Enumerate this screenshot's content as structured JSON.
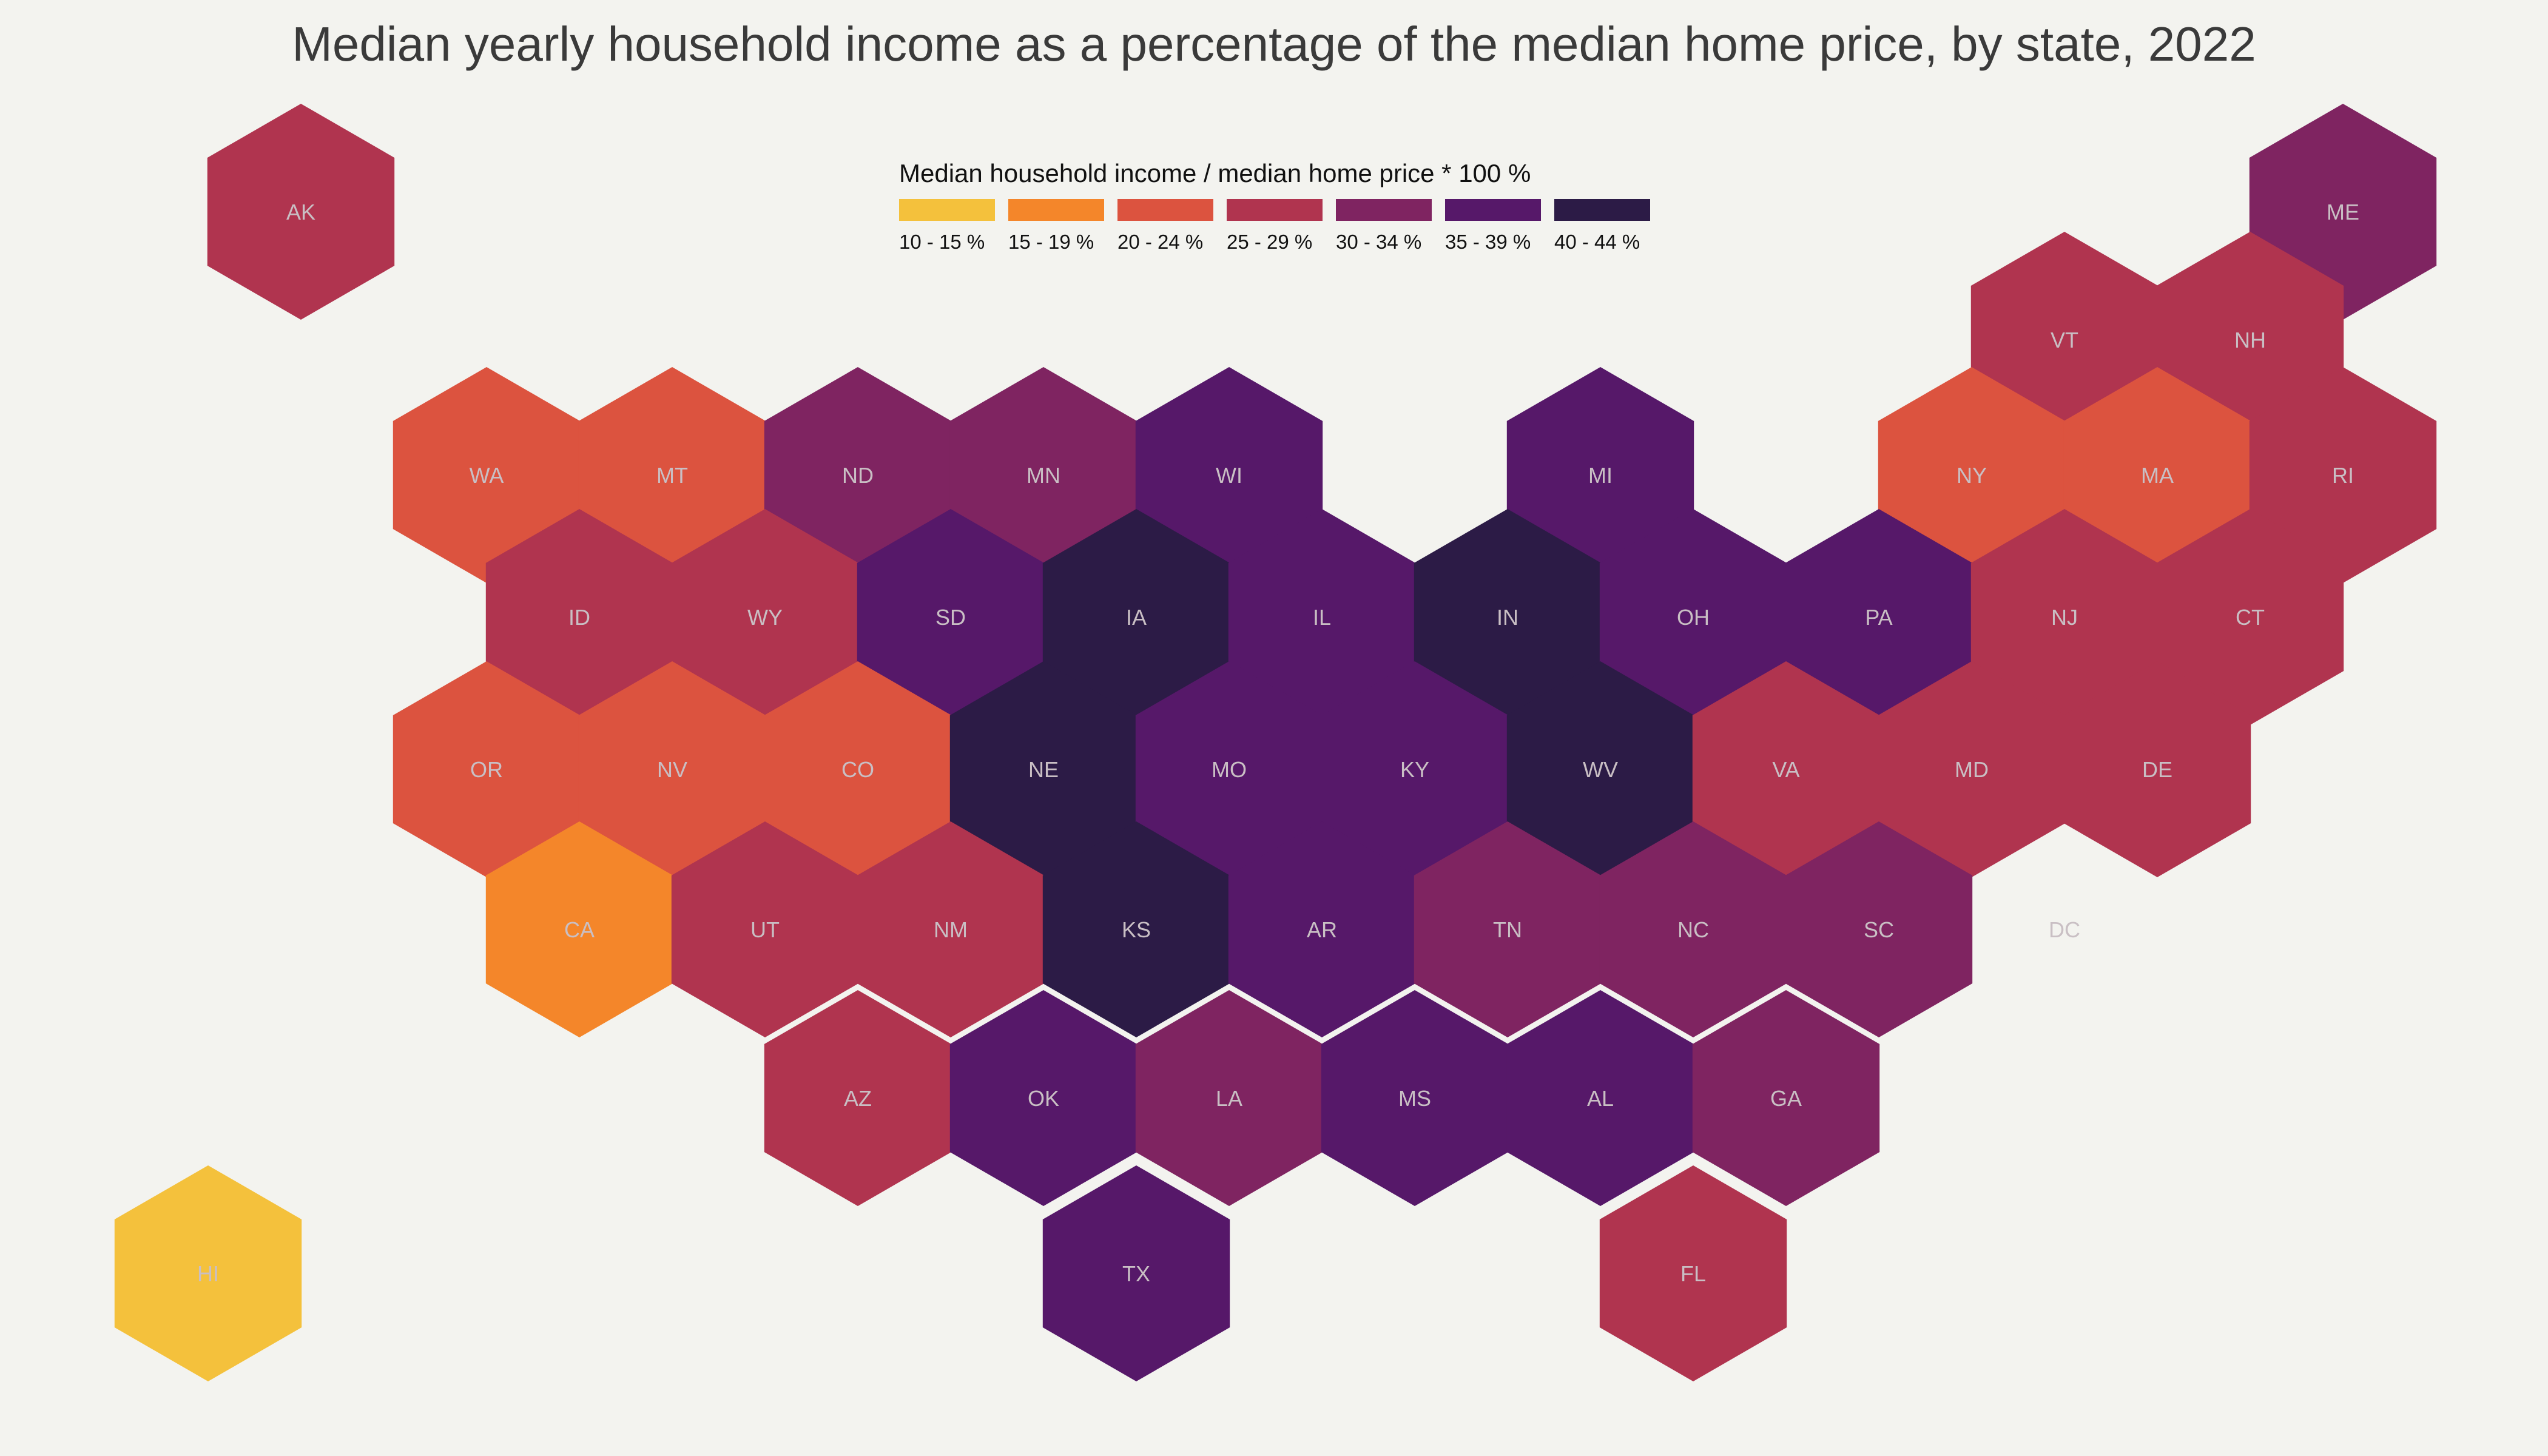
{
  "title": "Median yearly household income as a percentage of the median home price, by state, 2022",
  "legend": {
    "title": "Median household income / median home price * 100 %",
    "position": "top-center",
    "bins": [
      {
        "label": "10 - 15 %",
        "color": "#f4c13c"
      },
      {
        "label": "15 - 19 %",
        "color": "#f4862a"
      },
      {
        "label": "20 - 24 %",
        "color": "#dc533f"
      },
      {
        "label": "25 - 29 %",
        "color": "#b0344f"
      },
      {
        "label": "30 - 34 %",
        "color": "#7f2461"
      },
      {
        "label": "35 - 39 %",
        "color": "#561869"
      },
      {
        "label": "40 - 44 %",
        "color": "#2c1b46"
      }
    ]
  },
  "states": [
    {
      "code": "AK",
      "col": 1,
      "row": 0,
      "bin": 3
    },
    {
      "code": "ME",
      "col": 23,
      "row": 0,
      "bin": 4
    },
    {
      "code": "VT",
      "col": 20,
      "row": 1,
      "bin": 3
    },
    {
      "code": "NH",
      "col": 22,
      "row": 1,
      "bin": 3
    },
    {
      "code": "WA",
      "col": 3,
      "row": 2,
      "bin": 2
    },
    {
      "code": "MT",
      "col": 5,
      "row": 2,
      "bin": 2
    },
    {
      "code": "ND",
      "col": 7,
      "row": 2,
      "bin": 4
    },
    {
      "code": "MN",
      "col": 9,
      "row": 2,
      "bin": 4
    },
    {
      "code": "WI",
      "col": 11,
      "row": 2,
      "bin": 5
    },
    {
      "code": "MI",
      "col": 15,
      "row": 2,
      "bin": 5
    },
    {
      "code": "NY",
      "col": 19,
      "row": 2,
      "bin": 2
    },
    {
      "code": "MA",
      "col": 21,
      "row": 2,
      "bin": 2
    },
    {
      "code": "RI",
      "col": 23,
      "row": 2,
      "bin": 3
    },
    {
      "code": "ID",
      "col": 4,
      "row": 3,
      "bin": 3
    },
    {
      "code": "WY",
      "col": 6,
      "row": 3,
      "bin": 3
    },
    {
      "code": "SD",
      "col": 8,
      "row": 3,
      "bin": 5
    },
    {
      "code": "IA",
      "col": 10,
      "row": 3,
      "bin": 6
    },
    {
      "code": "IL",
      "col": 12,
      "row": 3,
      "bin": 5
    },
    {
      "code": "IN",
      "col": 14,
      "row": 3,
      "bin": 6
    },
    {
      "code": "OH",
      "col": 16,
      "row": 3,
      "bin": 5
    },
    {
      "code": "PA",
      "col": 18,
      "row": 3,
      "bin": 5
    },
    {
      "code": "NJ",
      "col": 20,
      "row": 3,
      "bin": 3
    },
    {
      "code": "CT",
      "col": 22,
      "row": 3,
      "bin": 3
    },
    {
      "code": "OR",
      "col": 3,
      "row": 4,
      "bin": 2
    },
    {
      "code": "NV",
      "col": 5,
      "row": 4,
      "bin": 2
    },
    {
      "code": "CO",
      "col": 7,
      "row": 4,
      "bin": 2
    },
    {
      "code": "NE",
      "col": 9,
      "row": 4,
      "bin": 6
    },
    {
      "code": "MO",
      "col": 11,
      "row": 4,
      "bin": 5
    },
    {
      "code": "KY",
      "col": 13,
      "row": 4,
      "bin": 5
    },
    {
      "code": "WV",
      "col": 15,
      "row": 4,
      "bin": 6
    },
    {
      "code": "VA",
      "col": 17,
      "row": 4,
      "bin": 3
    },
    {
      "code": "MD",
      "col": 19,
      "row": 4,
      "bin": 3
    },
    {
      "code": "DE",
      "col": 21,
      "row": 4,
      "bin": 3
    },
    {
      "code": "CA",
      "col": 4,
      "row": 5,
      "bin": 1
    },
    {
      "code": "UT",
      "col": 6,
      "row": 5,
      "bin": 3
    },
    {
      "code": "NM",
      "col": 8,
      "row": 5,
      "bin": 3
    },
    {
      "code": "KS",
      "col": 10,
      "row": 5,
      "bin": 6
    },
    {
      "code": "AR",
      "col": 12,
      "row": 5,
      "bin": 5
    },
    {
      "code": "TN",
      "col": 14,
      "row": 5,
      "bin": 4
    },
    {
      "code": "NC",
      "col": 16,
      "row": 5,
      "bin": 4
    },
    {
      "code": "SC",
      "col": 18,
      "row": 5,
      "bin": 4
    },
    {
      "code": "DC",
      "col": 20,
      "row": 5,
      "bin": null
    },
    {
      "code": "AZ",
      "col": 7,
      "row": 6,
      "bin": 3
    },
    {
      "code": "OK",
      "col": 9,
      "row": 6,
      "bin": 5
    },
    {
      "code": "LA",
      "col": 11,
      "row": 6,
      "bin": 4
    },
    {
      "code": "MS",
      "col": 13,
      "row": 6,
      "bin": 5
    },
    {
      "code": "AL",
      "col": 15,
      "row": 6,
      "bin": 5
    },
    {
      "code": "GA",
      "col": 17,
      "row": 6,
      "bin": 4
    },
    {
      "code": "HI",
      "col": 0,
      "row": 7,
      "bin": 0
    },
    {
      "code": "TX",
      "col": 10,
      "row": 7,
      "bin": 5
    },
    {
      "code": "FL",
      "col": 16,
      "row": 7,
      "bin": 3
    }
  ]
}
